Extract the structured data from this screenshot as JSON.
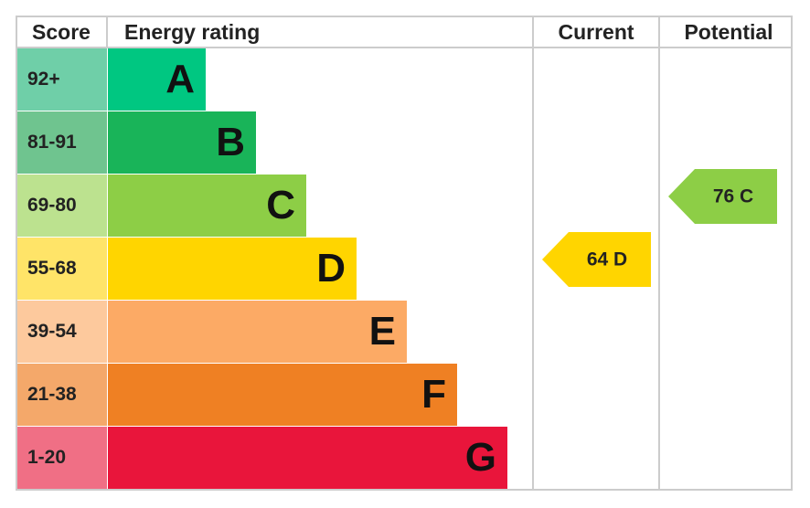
{
  "header": {
    "score": "Score",
    "rating": "Energy rating",
    "current": "Current",
    "potential": "Potential"
  },
  "bands": [
    {
      "score": "92+",
      "letter": "A",
      "color": "#00c781",
      "light": "#6fcfa8"
    },
    {
      "score": "81-91",
      "letter": "B",
      "color": "#19b459",
      "light": "#6fc48f"
    },
    {
      "score": "69-80",
      "letter": "C",
      "color": "#8dce46",
      "light": "#bce28f"
    },
    {
      "score": "55-68",
      "letter": "D",
      "color": "#ffd500",
      "light": "#ffe468"
    },
    {
      "score": "39-54",
      "letter": "E",
      "color": "#fcaa65",
      "light": "#fdc99d"
    },
    {
      "score": "21-38",
      "letter": "F",
      "color": "#ef8023",
      "light": "#f4a86a"
    },
    {
      "score": "1-20",
      "letter": "G",
      "color": "#e9153b",
      "light": "#f06f85"
    }
  ],
  "current": {
    "label": "64 D",
    "color": "#ffd500"
  },
  "potential": {
    "label": "76 C",
    "color": "#8dce46"
  }
}
